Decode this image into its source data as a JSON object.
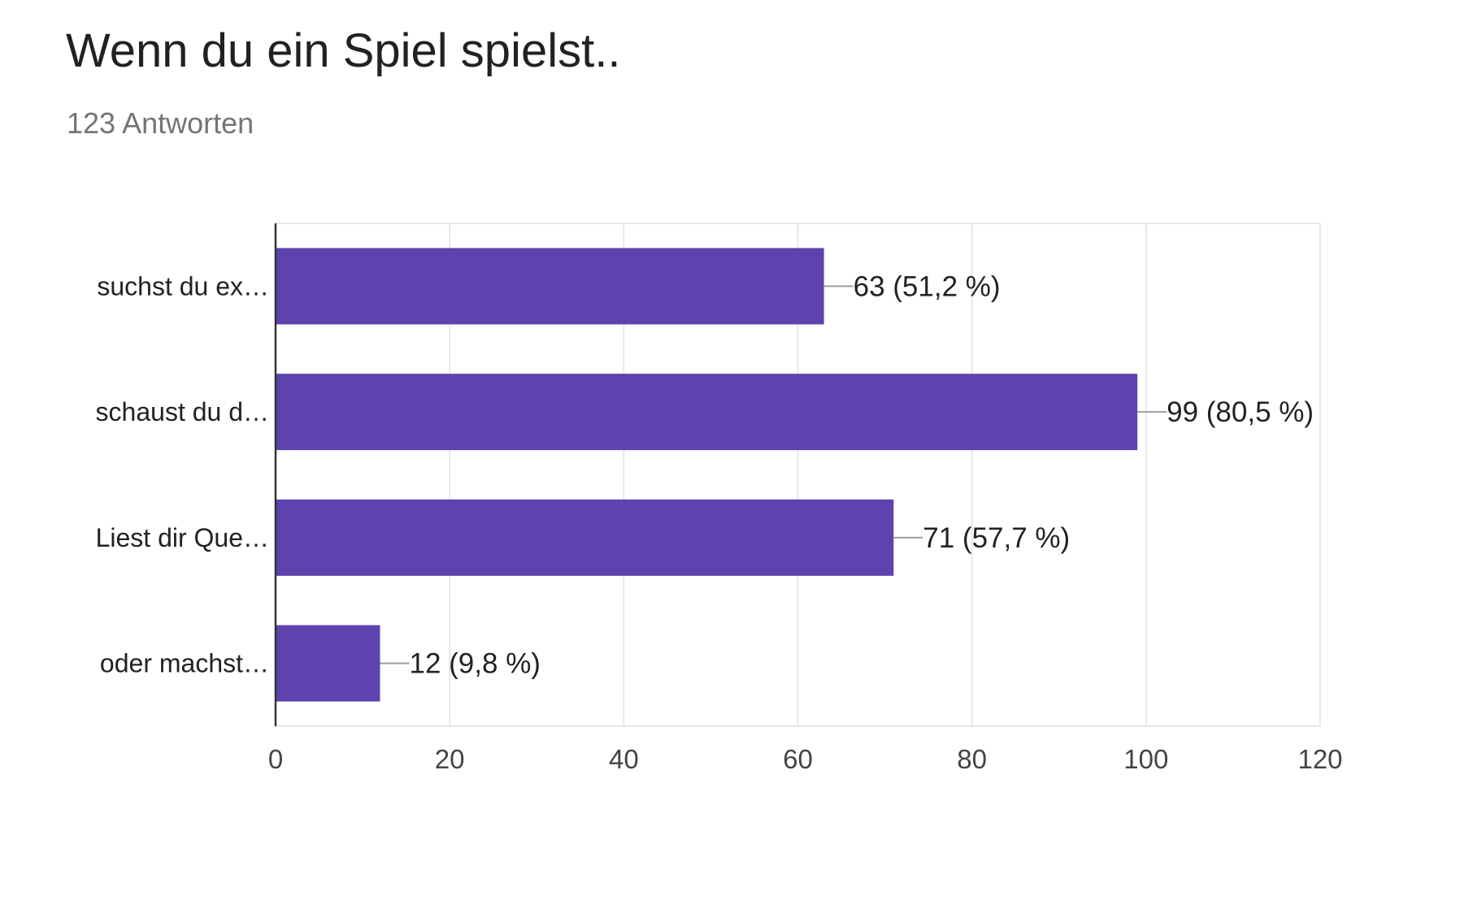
{
  "title": "Wenn du ein Spiel spielst..",
  "subtitle": "123 Antworten",
  "chart_data": {
    "type": "bar",
    "orientation": "horizontal",
    "title": "Wenn du ein Spiel spielst..",
    "subtitle": "123 Antworten",
    "categories": [
      "suchst du ex…",
      "schaust du d…",
      "Liest dir Que…",
      "oder machst…"
    ],
    "values": [
      63,
      99,
      71,
      12
    ],
    "value_labels": [
      "63 (51,2 %)",
      "99 (80,5 %)",
      "71 (57,7 %)",
      "12 (9,8 %)"
    ],
    "xlim": [
      0,
      120
    ],
    "x_ticks": [
      0,
      20,
      40,
      60,
      80,
      100,
      120
    ],
    "xlabel": "",
    "ylabel": "",
    "grid": true,
    "legend": "none",
    "colors": {
      "bar": "#5e43ae",
      "grid": "#e8e8e8",
      "axis": "#333333",
      "leader": "#9e9e9e"
    }
  }
}
